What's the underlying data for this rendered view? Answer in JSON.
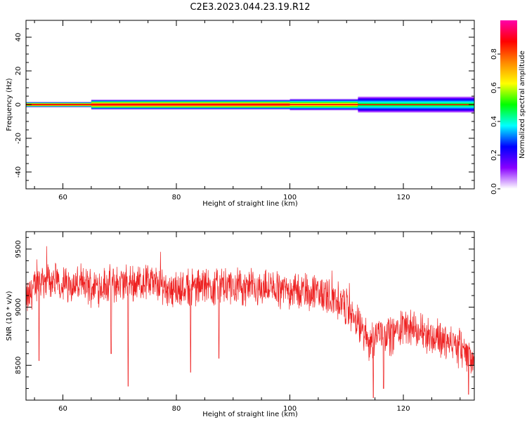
{
  "title": "C2E3.2023.044.23.19.R12",
  "chart_data": [
    {
      "type": "heatmap",
      "xlabel": "Height of straight line (km)",
      "ylabel": "Frequency (Hz)",
      "xlim": [
        53.5,
        132.5
      ],
      "ylim": [
        -50,
        50
      ],
      "x_ticks": [
        60,
        80,
        100,
        120
      ],
      "y_ticks": [
        -40,
        -20,
        0,
        20,
        40
      ],
      "x_tick_labels": [
        "60",
        "80",
        "100",
        "120"
      ],
      "y_tick_labels": [
        "-40",
        "-20",
        "0",
        "20",
        "40"
      ],
      "colorbar": {
        "label": "Normalized spectral amplitude",
        "range": [
          0,
          1
        ],
        "ticks": [
          "0.0",
          "0.2",
          "0.4",
          "0.6",
          "0.8"
        ],
        "colormap": [
          "#ffffff",
          "#8800ff",
          "#0000ff",
          "#00ffff",
          "#00ff00",
          "#ffff00",
          "#ff8800",
          "#ff0000",
          "#ff00aa"
        ]
      },
      "band": {
        "segments": [
          {
            "x_start": 53.5,
            "x_end": 65,
            "half_width_hz": 1.6,
            "peak_amplitude": 0.95
          },
          {
            "x_start": 65,
            "x_end": 100,
            "half_width_hz": 3.0,
            "peak_amplitude": 0.9
          },
          {
            "x_start": 100,
            "x_end": 112,
            "half_width_hz": 3.5,
            "peak_amplitude": 0.75
          },
          {
            "x_start": 112,
            "x_end": 132.5,
            "half_width_hz": 5.0,
            "peak_amplitude": 0.5
          }
        ]
      }
    },
    {
      "type": "line",
      "xlabel": "Height of straight line (km)",
      "ylabel": "SNR (10 * v/v)",
      "xlim": [
        53.5,
        132.5
      ],
      "ylim": [
        8200,
        9650
      ],
      "x_ticks": [
        60,
        80,
        100,
        120
      ],
      "y_ticks": [
        8500,
        9000,
        9500
      ],
      "x_tick_labels": [
        "60",
        "80",
        "100",
        "120"
      ],
      "y_tick_labels": [
        "8500",
        "9000",
        "9500"
      ],
      "series_color": "#ee2222",
      "trend": {
        "x": [
          53.5,
          56,
          60,
          65,
          70,
          75,
          80,
          85,
          90,
          95,
          100,
          105,
          108,
          110,
          112,
          114,
          116,
          118,
          120,
          122,
          125,
          128,
          130,
          132.5
        ],
        "y": [
          9050,
          9250,
          9200,
          9180,
          9200,
          9220,
          9150,
          9180,
          9170,
          9160,
          9150,
          9120,
          9080,
          9000,
          8850,
          8700,
          8800,
          8750,
          8850,
          8800,
          8750,
          8700,
          8650,
          8550
        ]
      },
      "dips": [
        {
          "x": 55.8,
          "y": 8540
        },
        {
          "x": 71.5,
          "y": 8320
        },
        {
          "x": 68.5,
          "y": 8600
        },
        {
          "x": 82.5,
          "y": 8440
        },
        {
          "x": 87.5,
          "y": 8560
        },
        {
          "x": 114.7,
          "y": 8220
        },
        {
          "x": 116.5,
          "y": 8300
        },
        {
          "x": 131.5,
          "y": 8250
        }
      ]
    }
  ]
}
